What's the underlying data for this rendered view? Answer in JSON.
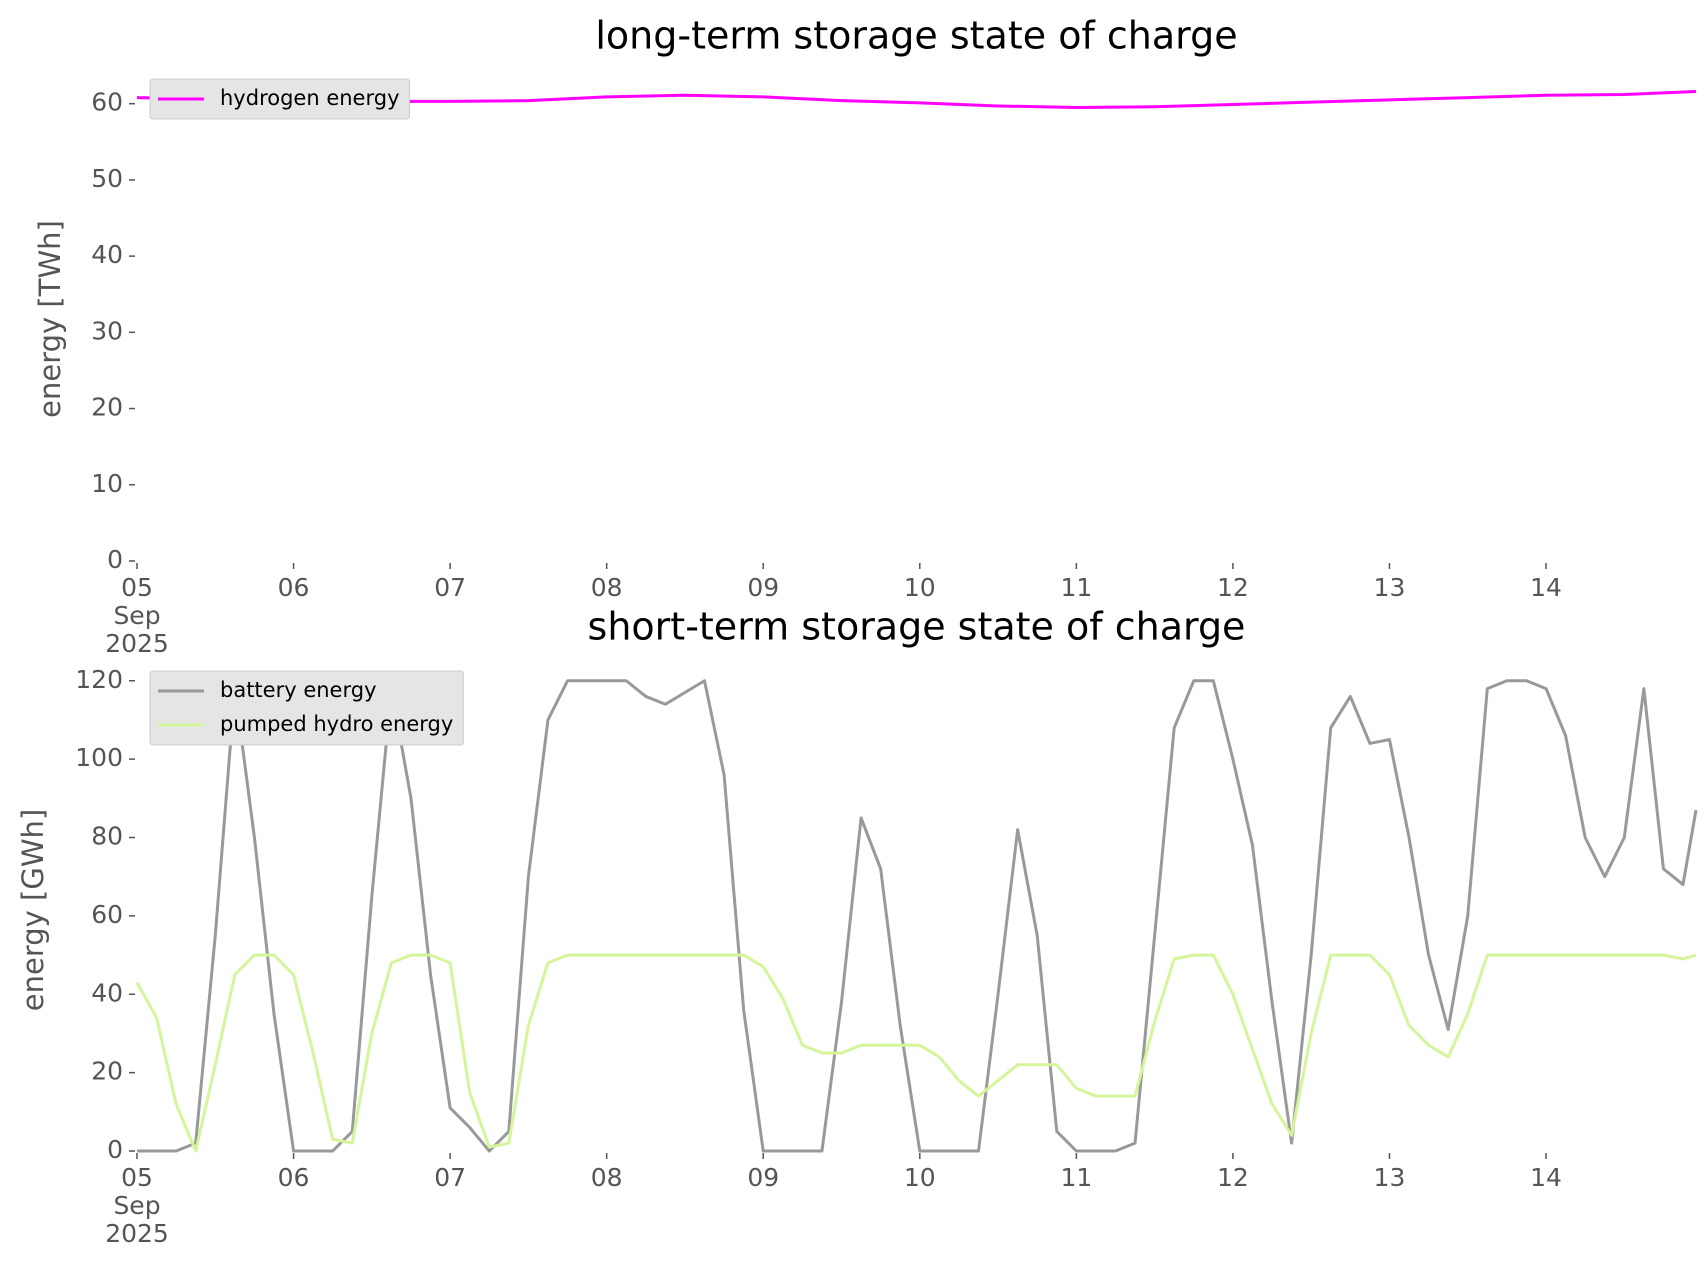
{
  "chart_data": [
    {
      "type": "line",
      "title": "long-term storage state of charge",
      "ylabel": "energy [TWh]",
      "x": [
        5,
        5.5,
        6,
        6.5,
        7,
        7.5,
        8,
        8.5,
        9,
        9.5,
        10,
        10.5,
        11,
        11.5,
        12,
        12.5,
        13,
        13.5,
        14,
        14.5,
        14.958
      ],
      "series": [
        {
          "name": "hydrogen energy",
          "color": "#ff00ff",
          "values": [
            60.8,
            60.6,
            60.3,
            60.3,
            60.3,
            60.4,
            60.9,
            61.1,
            60.9,
            60.4,
            60.1,
            59.7,
            59.5,
            59.6,
            59.9,
            60.2,
            60.5,
            60.8,
            61.1,
            61.2,
            61.6
          ]
        }
      ],
      "xlim": [
        5,
        14.958
      ],
      "xticks": [
        {
          "value": 5,
          "label": "05\nSep\n2025"
        },
        {
          "value": 6,
          "label": "06"
        },
        {
          "value": 7,
          "label": "07"
        },
        {
          "value": 8,
          "label": "08"
        },
        {
          "value": 9,
          "label": "09"
        },
        {
          "value": 10,
          "label": "10"
        },
        {
          "value": 11,
          "label": "11"
        },
        {
          "value": 12,
          "label": "12"
        },
        {
          "value": 13,
          "label": "13"
        },
        {
          "value": 14,
          "label": "14"
        }
      ],
      "ylim": [
        0,
        63.5
      ],
      "yticks": [
        0,
        10,
        20,
        30,
        40,
        50,
        60
      ],
      "legend": "upper left",
      "grid": false
    },
    {
      "type": "line",
      "title": "short-term storage state of charge",
      "ylabel": "energy [GWh]",
      "x": [
        5,
        5.125,
        5.25,
        5.375,
        5.5,
        5.625,
        5.75,
        5.875,
        6,
        6.125,
        6.25,
        6.375,
        6.5,
        6.625,
        6.75,
        6.875,
        7,
        7.125,
        7.25,
        7.375,
        7.5,
        7.625,
        7.75,
        7.875,
        8,
        8.125,
        8.25,
        8.375,
        8.5,
        8.625,
        8.75,
        8.875,
        9,
        9.125,
        9.25,
        9.375,
        9.5,
        9.625,
        9.75,
        9.875,
        10,
        10.125,
        10.25,
        10.375,
        10.5,
        10.625,
        10.75,
        10.875,
        11,
        11.125,
        11.25,
        11.375,
        11.5,
        11.625,
        11.75,
        11.875,
        12,
        12.125,
        12.25,
        12.375,
        12.5,
        12.625,
        12.75,
        12.875,
        13,
        13.125,
        13.25,
        13.375,
        13.5,
        13.625,
        13.75,
        13.875,
        14,
        14.125,
        14.25,
        14.375,
        14.5,
        14.625,
        14.75,
        14.875,
        14.958
      ],
      "series": [
        {
          "name": "battery energy",
          "color": "#999999",
          "values": [
            0,
            0,
            0,
            2,
            55,
            118,
            80,
            35,
            0,
            0,
            0,
            5,
            65,
            118,
            90,
            45,
            11,
            6,
            0,
            5,
            70,
            110,
            120,
            120,
            120,
            120,
            116,
            114,
            117,
            120,
            96,
            36,
            0,
            0,
            0,
            0,
            38,
            85,
            72,
            32,
            0,
            0,
            0,
            0,
            40,
            82,
            55,
            5,
            0,
            0,
            0,
            2,
            55,
            108,
            120,
            120,
            100,
            78,
            38,
            2,
            50,
            108,
            116,
            104,
            105,
            80,
            50,
            31,
            60,
            118,
            120,
            120,
            118,
            106,
            80,
            70,
            80,
            118,
            72,
            68,
            87
          ]
        },
        {
          "name": "pumped hydro energy",
          "color": "#d5f59a",
          "values": [
            43,
            34,
            12,
            0,
            22,
            45,
            50,
            50,
            45,
            25,
            3,
            2,
            30,
            48,
            50,
            50,
            48,
            15,
            1,
            2,
            32,
            48,
            50,
            50,
            50,
            50,
            50,
            50,
            50,
            50,
            50,
            50,
            47,
            39,
            27,
            25,
            25,
            27,
            27,
            27,
            27,
            24,
            18,
            14,
            18,
            22,
            22,
            22,
            16,
            14,
            14,
            14,
            33,
            49,
            50,
            50,
            40,
            26,
            12,
            4,
            30,
            50,
            50,
            50,
            45,
            32,
            27,
            24,
            35,
            50,
            50,
            50,
            50,
            50,
            50,
            50,
            50,
            50,
            50,
            49,
            50
          ]
        }
      ],
      "xlim": [
        5,
        14.958
      ],
      "xticks": [
        {
          "value": 5,
          "label": "05\nSep\n2025"
        },
        {
          "value": 6,
          "label": "06"
        },
        {
          "value": 7,
          "label": "07"
        },
        {
          "value": 8,
          "label": "08"
        },
        {
          "value": 9,
          "label": "09"
        },
        {
          "value": 10,
          "label": "10"
        },
        {
          "value": 11,
          "label": "11"
        },
        {
          "value": 12,
          "label": "12"
        },
        {
          "value": 13,
          "label": "13"
        },
        {
          "value": 14,
          "label": "14"
        }
      ],
      "ylim": [
        0,
        123
      ],
      "yticks": [
        0,
        20,
        40,
        60,
        80,
        100,
        120
      ],
      "legend": "upper left",
      "grid": false
    }
  ]
}
